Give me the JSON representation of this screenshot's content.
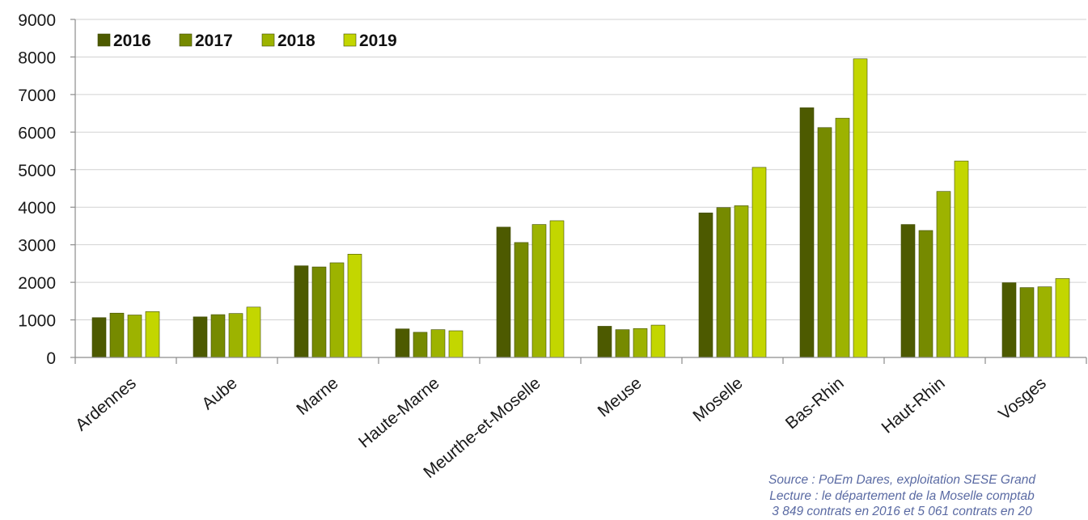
{
  "chart_data": {
    "type": "bar",
    "title": "",
    "xlabel": "",
    "ylabel": "",
    "ylim": [
      0,
      9000
    ],
    "yticks": [
      "0",
      "1000",
      "2000",
      "3000",
      "4000",
      "5000",
      "6000",
      "7000",
      "8000",
      "9000"
    ],
    "grid": true,
    "legend_position": "top-left",
    "categories": [
      "Ardennes",
      "Aube",
      "Marne",
      "Haute-Marne",
      "Meurthe-et-Moselle",
      "Meuse",
      "Moselle",
      "Bas-Rhin",
      "Haut-Rhin",
      "Vosges"
    ],
    "series": [
      {
        "name": "2016",
        "color": "#4d5a00",
        "values": [
          1060,
          1080,
          2440,
          760,
          3470,
          830,
          3849,
          6650,
          3540,
          1990
        ]
      },
      {
        "name": "2017",
        "color": "#768a00",
        "values": [
          1180,
          1140,
          2410,
          670,
          3060,
          740,
          3990,
          6120,
          3380,
          1860
        ]
      },
      {
        "name": "2018",
        "color": "#9db300",
        "values": [
          1130,
          1170,
          2520,
          740,
          3540,
          770,
          4040,
          6370,
          4420,
          1880
        ]
      },
      {
        "name": "2019",
        "color": "#c3d600",
        "values": [
          1220,
          1340,
          2750,
          710,
          3640,
          860,
          5061,
          7950,
          5230,
          2100
        ]
      }
    ]
  },
  "notes": {
    "line1": "Source : PoEm Dares, exploitation SESE Grand",
    "line2": "Lecture : le département de la Moselle comptab",
    "line3": "3 849 contrats en 2016 et 5 061 contrats en 20"
  }
}
